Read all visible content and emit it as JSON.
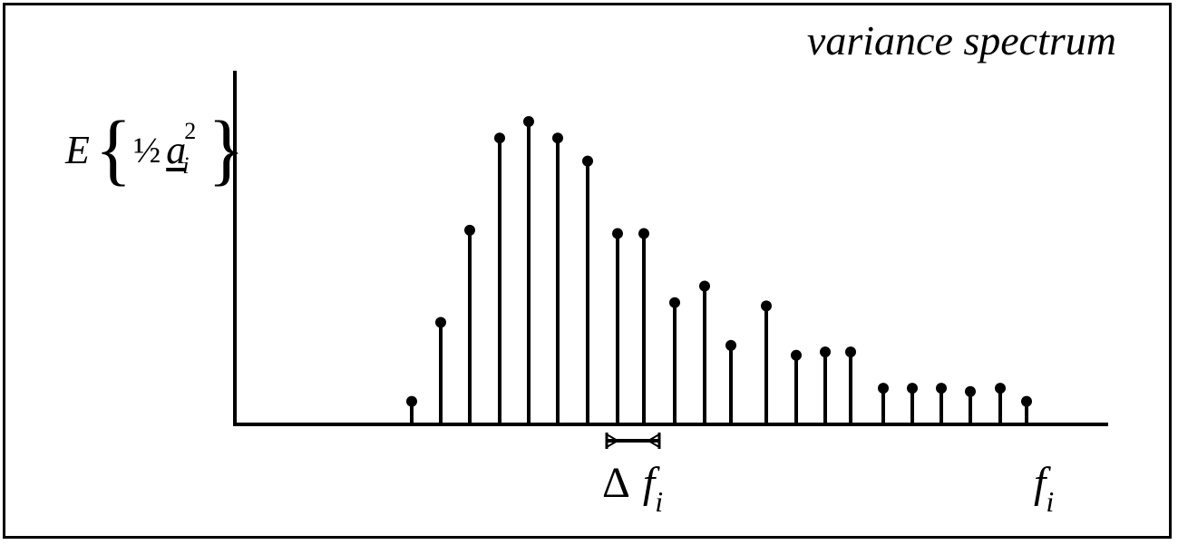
{
  "title": "variance spectrum",
  "y_axis_label": {
    "expectation": "E",
    "half": "½",
    "variable": "a",
    "superscript": "2",
    "subscript": "i"
  },
  "x_axis_label": {
    "base": "f",
    "subscript": "i"
  },
  "delta_label": {
    "delta": "Δ",
    "base": "f",
    "subscript": "i"
  },
  "stems": {
    "description_units": "relative height",
    "values": [
      0.07,
      0.31,
      0.59,
      0.87,
      0.92,
      0.87,
      0.8,
      0.58,
      0.58,
      0.37,
      0.42,
      0.24,
      0.36,
      0.21,
      0.22,
      0.22,
      0.11,
      0.11,
      0.11,
      0.1,
      0.11,
      0.07
    ]
  },
  "colors": {
    "ink": "#000000",
    "background": "#ffffff"
  }
}
